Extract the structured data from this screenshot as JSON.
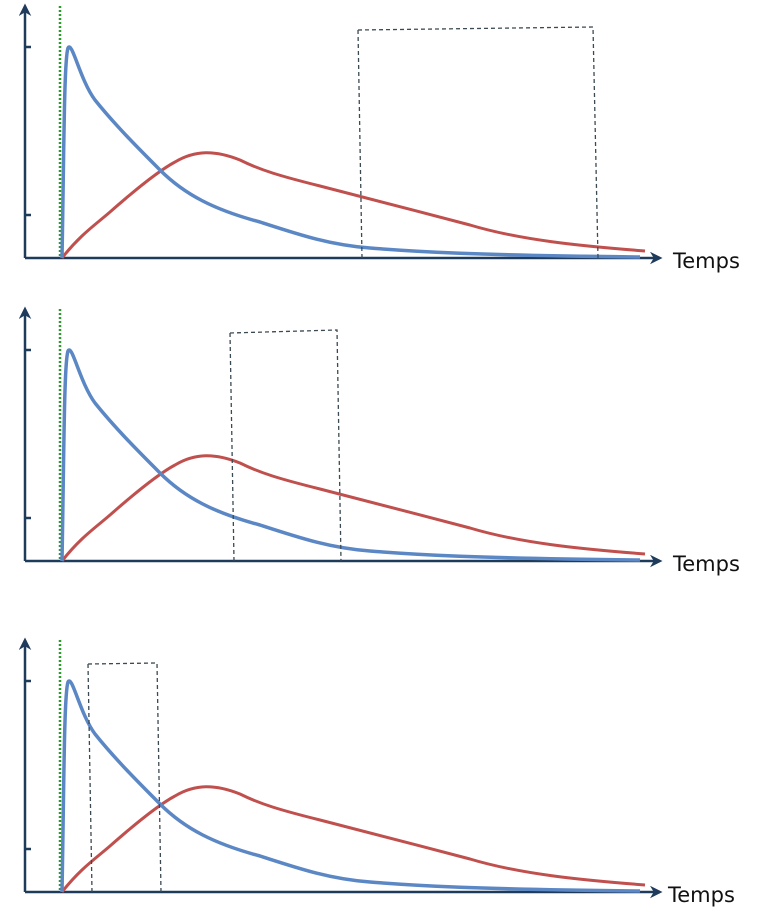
{
  "panels": [
    {
      "x_label": "Temps"
    },
    {
      "x_label": "Temps"
    },
    {
      "x_label": "Temps"
    }
  ]
}
